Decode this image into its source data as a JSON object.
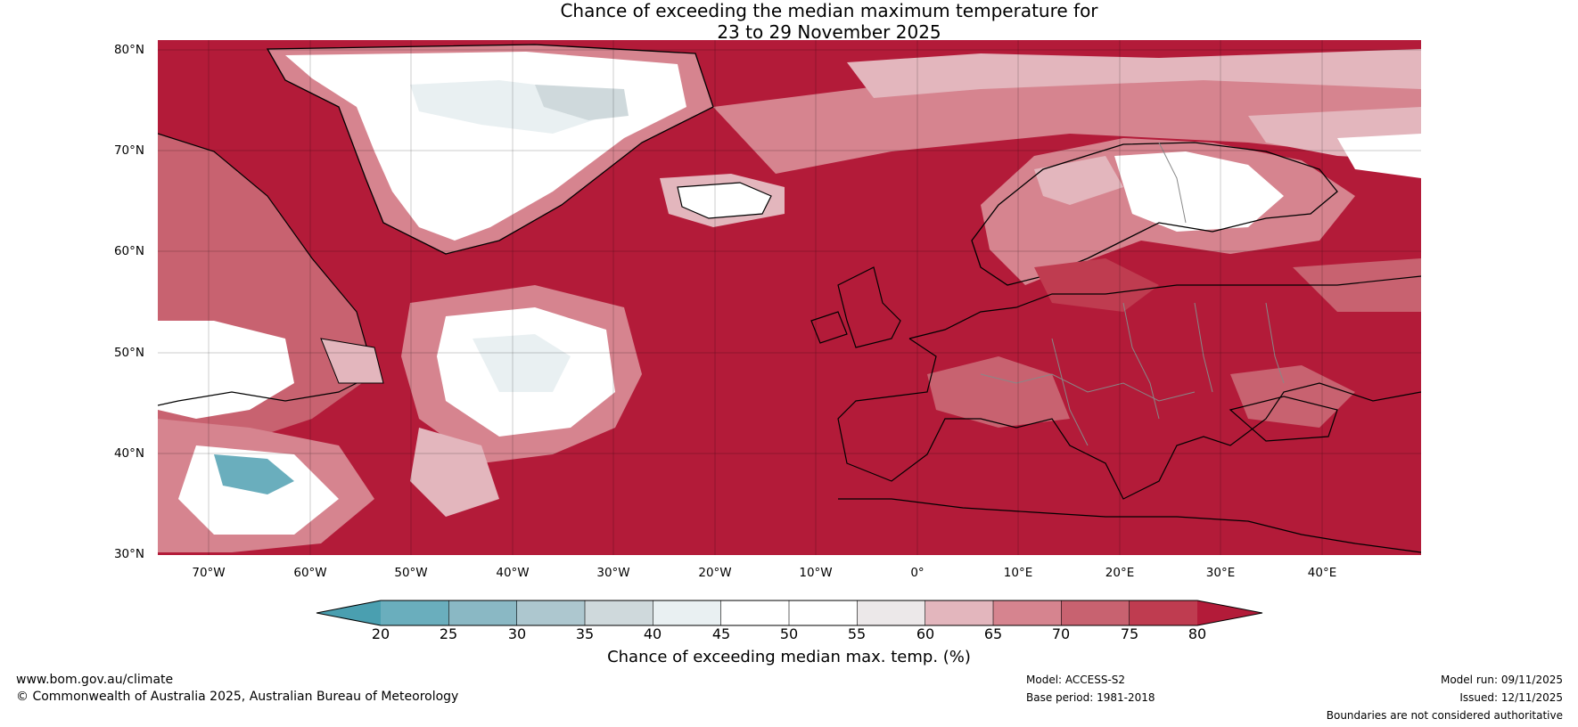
{
  "title": {
    "line1": "Chance of exceeding the median maximum temperature for",
    "line2": "23 to 29 November 2025"
  },
  "map": {
    "background_color": "#b31b39",
    "lat_ticks": [
      "80°N",
      "70°N",
      "60°N",
      "50°N",
      "40°N",
      "30°N"
    ],
    "lon_ticks": [
      "70°W",
      "60°W",
      "50°W",
      "40°W",
      "30°W",
      "20°W",
      "10°W",
      "0°",
      "10°E",
      "20°E",
      "30°E",
      "40°E"
    ]
  },
  "colorbar": {
    "title": "Chance of exceeding median max. temp. (%)",
    "labels": [
      "20",
      "25",
      "30",
      "35",
      "40",
      "45",
      "50",
      "55",
      "60",
      "65",
      "70",
      "75",
      "80"
    ],
    "colors": [
      "#4a9fb0",
      "#6aaebd",
      "#8ab8c4",
      "#adc7cf",
      "#cfd9dc",
      "#e9f0f2",
      "#ffffff",
      "#ffffff",
      "#ece8e9",
      "#e3b6bd",
      "#d6848f",
      "#c86270",
      "#bf3c50",
      "#b31b39"
    ]
  },
  "footer": {
    "website": "www.bom.gov.au/climate",
    "copyright": "© Commonwealth of Australia 2025, Australian Bureau of Meteorology",
    "model": "Model: ACCESS-S2",
    "base_period": "Base period: 1981-2018",
    "model_run": "Model run: 09/11/2025",
    "issued": "Issued: 12/11/2025",
    "disclaimer": "Boundaries are not considered authoritative"
  }
}
